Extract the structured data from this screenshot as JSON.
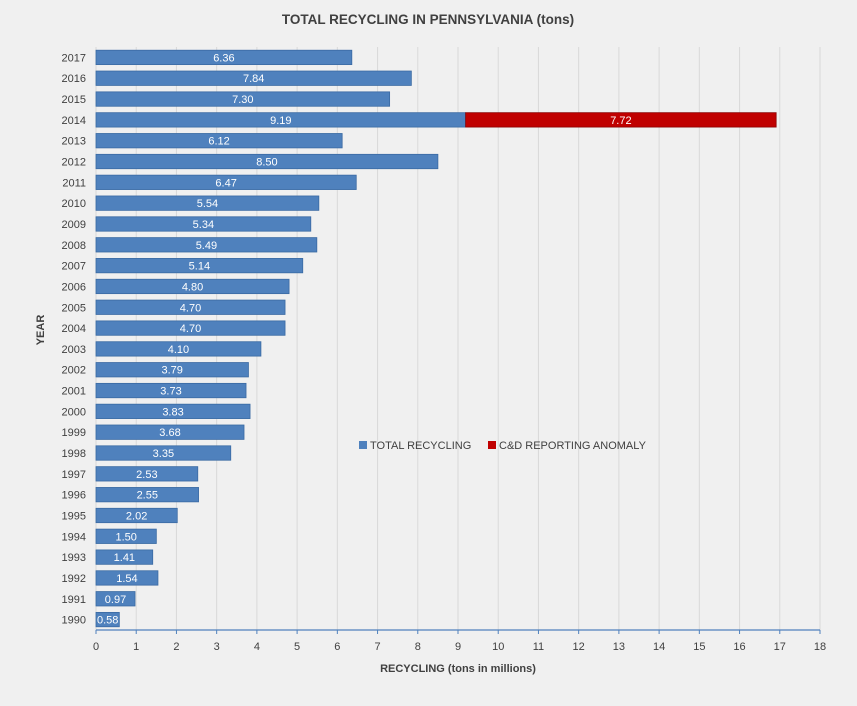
{
  "chart_data": {
    "type": "bar",
    "orientation": "horizontal",
    "stacked": true,
    "title": "TOTAL RECYCLING IN PENNSYLVANIA (tons)",
    "xlabel": "RECYCLING  (tons in millions)",
    "ylabel": "YEAR",
    "xlim": [
      0,
      18
    ],
    "x_ticks": [
      0,
      1,
      2,
      3,
      4,
      5,
      6,
      7,
      8,
      9,
      10,
      11,
      12,
      13,
      14,
      15,
      16,
      17,
      18
    ],
    "grid": true,
    "legend_position": "center",
    "categories": [
      "2017",
      "2016",
      "2015",
      "2014",
      "2013",
      "2012",
      "2011",
      "2010",
      "2009",
      "2008",
      "2007",
      "2006",
      "2005",
      "2004",
      "2003",
      "2002",
      "2001",
      "2000",
      "1999",
      "1998",
      "1997",
      "1996",
      "1995",
      "1994",
      "1993",
      "1992",
      "1991",
      "1990"
    ],
    "series": [
      {
        "name": "TOTAL RECYCLING",
        "color": "#4f81bd",
        "values": [
          6.36,
          7.84,
          7.3,
          9.19,
          6.12,
          8.5,
          6.47,
          5.54,
          5.34,
          5.49,
          5.14,
          4.8,
          4.7,
          4.7,
          4.1,
          3.79,
          3.73,
          3.83,
          3.68,
          3.35,
          2.53,
          2.55,
          2.02,
          1.5,
          1.41,
          1.54,
          0.97,
          0.58
        ],
        "labels": [
          "6.36",
          "7.84",
          "7.30",
          "9.19",
          "6.12",
          "8.50",
          "6.47",
          "5.54",
          "5.34",
          "5.49",
          "5.14",
          "4.80",
          "4.70",
          "4.70",
          "4.10",
          "3.79",
          "3.73",
          "3.83",
          "3.68",
          "3.35",
          "2.53",
          "2.55",
          "2.02",
          "1.50",
          "1.41",
          "1.54",
          "0.97",
          "0.58"
        ]
      },
      {
        "name": "C&D REPORTING ANOMALY",
        "color": "#c00000",
        "values": [
          null,
          null,
          null,
          7.72,
          null,
          null,
          null,
          null,
          null,
          null,
          null,
          null,
          null,
          null,
          null,
          null,
          null,
          null,
          null,
          null,
          null,
          null,
          null,
          null,
          null,
          null,
          null,
          null
        ],
        "labels": [
          null,
          null,
          null,
          "7.72",
          null,
          null,
          null,
          null,
          null,
          null,
          null,
          null,
          null,
          null,
          null,
          null,
          null,
          null,
          null,
          null,
          null,
          null,
          null,
          null,
          null,
          null,
          null,
          null
        ]
      }
    ]
  }
}
